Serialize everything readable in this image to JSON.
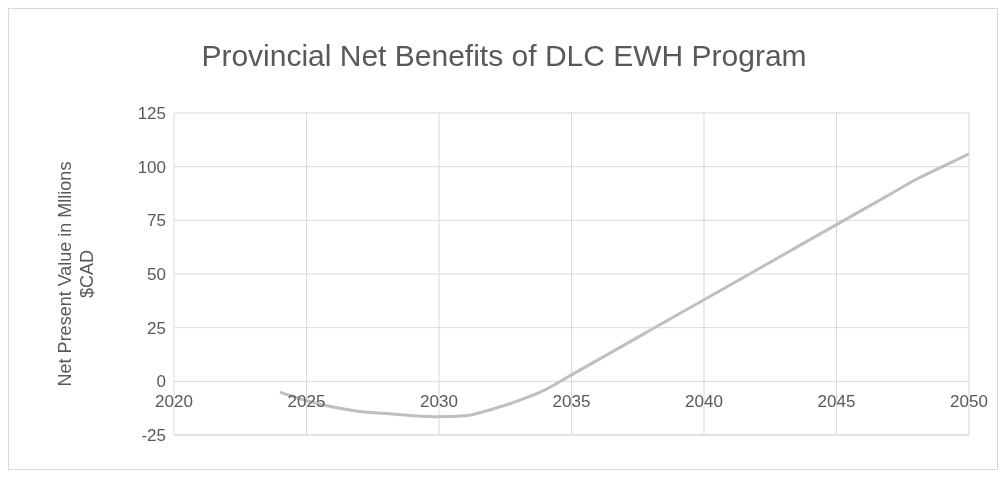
{
  "chart_data": {
    "type": "line",
    "title": "Provincial Net Benefits of DLC EWH Program",
    "ylabel": "Net Present Value in Mllions $CAD",
    "x": [
      2024,
      2025,
      2026,
      2027,
      2028,
      2029,
      2030,
      2031,
      2032,
      2033,
      2034,
      2035,
      2036,
      2037,
      2038,
      2039,
      2040,
      2041,
      2042,
      2043,
      2044,
      2045,
      2046,
      2047,
      2048,
      2049,
      2050
    ],
    "series": [
      {
        "color": "#bfbfbf",
        "values": [
          -5,
          -9,
          -12,
          -14,
          -15,
          -16,
          -16.5,
          -16,
          -13,
          -9,
          -4,
          3,
          10,
          17,
          24,
          31,
          38,
          45,
          52,
          59,
          66,
          73,
          80,
          87,
          94,
          100,
          106
        ]
      }
    ],
    "xlim": [
      2020,
      2050
    ],
    "xticks": [
      2020,
      2025,
      2030,
      2035,
      2040,
      2045,
      2050
    ],
    "ylim": [
      -25,
      125
    ],
    "yticks": [
      -25,
      0,
      25,
      50,
      75,
      100,
      125
    ],
    "grid": true,
    "legend": false,
    "marker": "none",
    "line_style": "solid"
  }
}
